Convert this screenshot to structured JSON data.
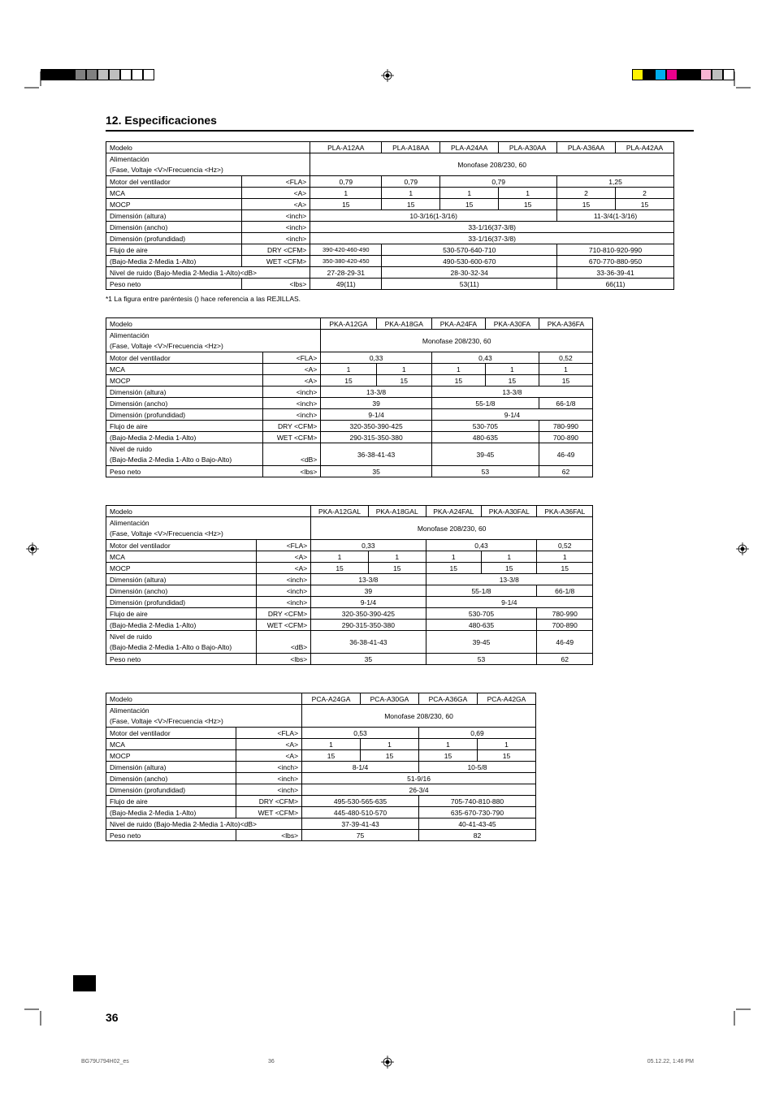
{
  "heading": "12. Especificaciones",
  "footnote": "*1 La figura entre paréntesis () hace referencia a las REJILLAS.",
  "page_number": "36",
  "footer": {
    "left": "BG79U794H02_es",
    "mid": "36",
    "right": "05.12.22, 1:46 PM"
  },
  "row_labels": {
    "modelo": "Modelo",
    "alimentacion": "Alimentación",
    "alimentacion2": "(Fase, Voltaje <V>/Frecuencia <Hz>)",
    "motor": "Motor del ventilador",
    "mca": "MCA",
    "mocp": "MOCP",
    "altura": "Dimensión (altura)",
    "ancho": "Dimensión (ancho)",
    "prof": "Dimensión (profundidad)",
    "flujo": "Flujo de aire",
    "bajo_media": "(Bajo-Media 2-Media 1-Alto)",
    "ruido": "Nivel de ruido (Bajo-Media 2-Media 1-Alto)<dB>",
    "ruido_short": "Nivel de ruido",
    "ruido_sub_ba": "(Bajo-Media 2-Media 1-Alto o Bajo-Alto)",
    "peso": "Peso neto"
  },
  "units": {
    "fla": "<FLA>",
    "a": "<A>",
    "inch": "<inch>",
    "dry": "DRY <CFM>",
    "wet": "WET <CFM>",
    "lbs": "<lbs>",
    "db": "<dB>"
  },
  "table1": {
    "models": [
      "PLA-A12AA",
      "PLA-A18AA",
      "PLA-A24AA",
      "PLA-A30AA",
      "PLA-A36AA",
      "PLA-A42AA"
    ],
    "power": "Monofase 208/230, 60",
    "motor": [
      "0,79",
      "0,79",
      "0,79",
      "1,25"
    ],
    "mca": [
      "1",
      "1",
      "1",
      "1",
      "2",
      "2"
    ],
    "mocp": [
      "15",
      "15",
      "15",
      "15",
      "15",
      "15"
    ],
    "altura": {
      "a": "10-3/16(1-3/16)",
      "b": "11-3/4(1-3/16)"
    },
    "ancho": "33-1/16(37-3/8)",
    "prof": "33-1/16(37-3/8)",
    "flujo_dry": {
      "a": "390-420-460-490",
      "b": "530-570-640-710",
      "c": "710-810-920-990"
    },
    "flujo_wet": {
      "a": "350-380-420-450",
      "b": "490-530-600-670",
      "c": "670-770-880-950"
    },
    "ruido": {
      "a": "27-28-29-31",
      "b": "28-30-32-34",
      "c": "33-36-39-41"
    },
    "peso": {
      "a": "49(11)",
      "b": "53(11)",
      "c": "66(11)"
    }
  },
  "table2": {
    "models": [
      "PKA-A12GA",
      "PKA-A18GA",
      "PKA-A24FA",
      "PKA-A30FA",
      "PKA-A36FA"
    ],
    "power": "Monofase 208/230, 60",
    "motor": [
      "0,33",
      "0,43",
      "0,52"
    ],
    "mca": [
      "1",
      "1",
      "1",
      "1",
      "1"
    ],
    "mocp": [
      "15",
      "15",
      "15",
      "15",
      "15"
    ],
    "altura": [
      "13-3/8",
      "13-3/8"
    ],
    "ancho": [
      "39",
      "55-1/8",
      "66-1/8"
    ],
    "prof": [
      "9-1/4",
      "9-1/4"
    ],
    "flujo_dry": [
      "320-350-390-425",
      "530-705",
      "780-990"
    ],
    "flujo_wet": [
      "290-315-350-380",
      "480-635",
      "700-890"
    ],
    "ruido": [
      "36-38-41-43",
      "39-45",
      "46-49"
    ],
    "peso": [
      "35",
      "53",
      "62"
    ]
  },
  "table3": {
    "models": [
      "PKA-A12GAL",
      "PKA-A18GAL",
      "PKA-A24FAL",
      "PKA-A30FAL",
      "PKA-A36FAL"
    ],
    "power": "Monofase 208/230, 60",
    "motor": [
      "0,33",
      "0,43",
      "0,52"
    ],
    "mca": [
      "1",
      "1",
      "1",
      "1",
      "1"
    ],
    "mocp": [
      "15",
      "15",
      "15",
      "15",
      "15"
    ],
    "altura": [
      "13-3/8",
      "13-3/8"
    ],
    "ancho": [
      "39",
      "55-1/8",
      "66-1/8"
    ],
    "prof": [
      "9-1/4",
      "9-1/4"
    ],
    "flujo_dry": [
      "320-350-390-425",
      "530-705",
      "780-990"
    ],
    "flujo_wet": [
      "290-315-350-380",
      "480-635",
      "700-890"
    ],
    "ruido": [
      "36-38-41-43",
      "39-45",
      "46-49"
    ],
    "peso": [
      "35",
      "53",
      "62"
    ]
  },
  "table4": {
    "models": [
      "PCA-A24GA",
      "PCA-A30GA",
      "PCA-A36GA",
      "PCA-A42GA"
    ],
    "power": "Monofase 208/230, 60",
    "motor": [
      "0,53",
      "0,69"
    ],
    "mca": [
      "1",
      "1",
      "1",
      "1"
    ],
    "mocp": [
      "15",
      "15",
      "15",
      "15"
    ],
    "altura": [
      "8-1/4",
      "10-5/8"
    ],
    "ancho": "51-9/16",
    "prof": "26-3/4",
    "flujo_dry": [
      "495-530-565-635",
      "705-740-810-880"
    ],
    "flujo_wet": [
      "445-480-510-570",
      "635-670-730-790"
    ],
    "ruido": [
      "37-39-41-43",
      "40-41-43-45"
    ],
    "peso": [
      "75",
      "82"
    ]
  },
  "colors": {
    "black": "#000000",
    "yellow": "#fef200",
    "magenta": "#ec008c",
    "cyan": "#00aeef",
    "gray50": "#808080",
    "gray25": "#bfbfbf",
    "white": "#ffffff",
    "pink": "#f8b4d3"
  }
}
